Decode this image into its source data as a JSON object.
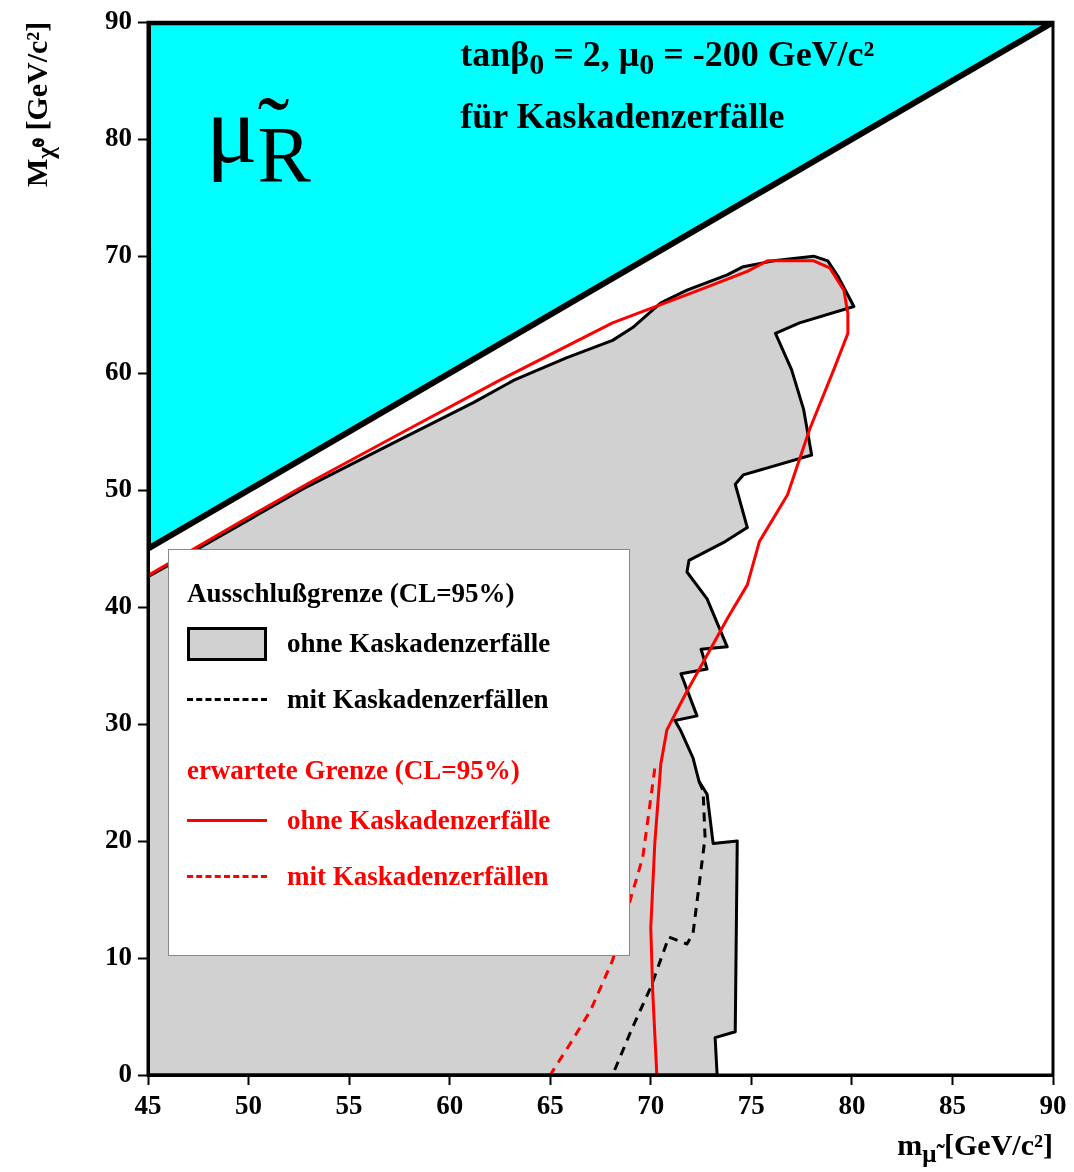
{
  "chart_data": {
    "type": "line",
    "title": "tanβ$_{0}$ = 2, μ$_{0}$ = -200 GeV/c²",
    "subtitle": "für Kaskadenzerfälle",
    "xlabel": "m$_{μ̃}$ [GeV/c²]",
    "ylabel": "M$_{χ̃⁰}$ [GeV/c²]",
    "annotations": [
      "μ̃$_{R}$",
      "Ausschlußgrenze (CL=95%)",
      "erwartete Grenze (CL=95%)"
    ],
    "xlim": [
      45,
      90
    ],
    "xticks": [
      45,
      50,
      55,
      60,
      65,
      70,
      75,
      80,
      85,
      90
    ],
    "ylim": [
      0,
      90
    ],
    "yticks": [
      0,
      10,
      20,
      30,
      40,
      50,
      60,
      70,
      80,
      90
    ],
    "grid": false,
    "legend": "left",
    "marker": "none",
    "series": [
      {
        "type": "area",
        "color": "#00ffff",
        "x": [
          45,
          90,
          45,
          45
        ],
        "values": [
          45,
          90,
          90,
          45
        ]
      },
      {
        "type": "area",
        "name": "ohne Kaskadenzerfälle",
        "color": "#000000",
        "x": [
          45,
          47.6,
          52.7,
          57.5,
          61.2,
          63.2,
          65.8,
          68.1,
          69.1,
          70.5,
          71.8,
          73.8,
          74.6,
          76.1,
          78.1,
          78.8,
          79.3,
          80.1,
          77.4,
          76.2,
          77.0,
          77.6,
          78.0,
          74.6,
          74.2,
          74.8,
          73.7,
          71.9,
          71.8,
          72.8,
          73.8,
          72.5,
          72.8,
          71.5,
          72.3,
          71.2,
          71.5,
          72.1,
          72.4,
          72.8,
          73.1,
          74.3,
          74.2,
          73.2,
          73.3,
          45,
          45
        ],
        "values": [
          42.6,
          45.1,
          50.1,
          54.3,
          57.5,
          59.4,
          61.3,
          62.8,
          63.9,
          66.0,
          67.1,
          68.4,
          69.1,
          69.6,
          70.0,
          69.6,
          68.3,
          65.7,
          64.3,
          63.4,
          60.3,
          56.9,
          53.0,
          51.3,
          50.5,
          46.8,
          45.6,
          44.0,
          43.0,
          40.7,
          36.6,
          36.4,
          34.7,
          34.3,
          30.7,
          30.3,
          29.4,
          27.1,
          25.1,
          24.0,
          19.8,
          20.0,
          3.7,
          3.2,
          0,
          0,
          42.6
        ]
      },
      {
        "name": "mit Kaskadenzerfällen",
        "color": "#000000",
        "line_style": "dashed",
        "x": [
          72.4,
          72.6,
          72.7,
          72.1,
          71.8,
          70.9,
          70.0,
          69.1,
          68.1
        ],
        "values": [
          25.1,
          24.3,
          20.3,
          12.1,
          11.2,
          11.8,
          7.5,
          4.1,
          0
        ]
      },
      {
        "name": "ohne Kaskadenzerfälle",
        "color": "#ff0000",
        "x": [
          45,
          45.1,
          49.6,
          53.2,
          57.5,
          62.5,
          68.1,
          70.1,
          72.4,
          74.8,
          75.8,
          78.1,
          78.9,
          79.6,
          79.8,
          79.8,
          79.1,
          77.9,
          76.8,
          75.4,
          74.8,
          73.8,
          72.9,
          71.8,
          70.8,
          70.5,
          70.2,
          70.0,
          70.1,
          70.3
        ],
        "values": [
          42.6,
          42.8,
          47.3,
          50.8,
          54.8,
          59.4,
          64.3,
          65.6,
          67.1,
          68.7,
          69.6,
          69.6,
          69.0,
          67.1,
          65.1,
          63.4,
          60.3,
          55.2,
          49.6,
          45.6,
          41.9,
          39.0,
          36.2,
          32.8,
          29.5,
          26.6,
          19.8,
          12.6,
          7.0,
          0
        ]
      },
      {
        "name": "mit Kaskadenzerfällen",
        "color": "#ff0000",
        "line_style": "dashed",
        "x": [
          70.2,
          69.6,
          68.1,
          67.0,
          66.0,
          65.0
        ],
        "values": [
          26.2,
          18.6,
          9.8,
          5.5,
          2.7,
          0
        ]
      }
    ]
  }
}
